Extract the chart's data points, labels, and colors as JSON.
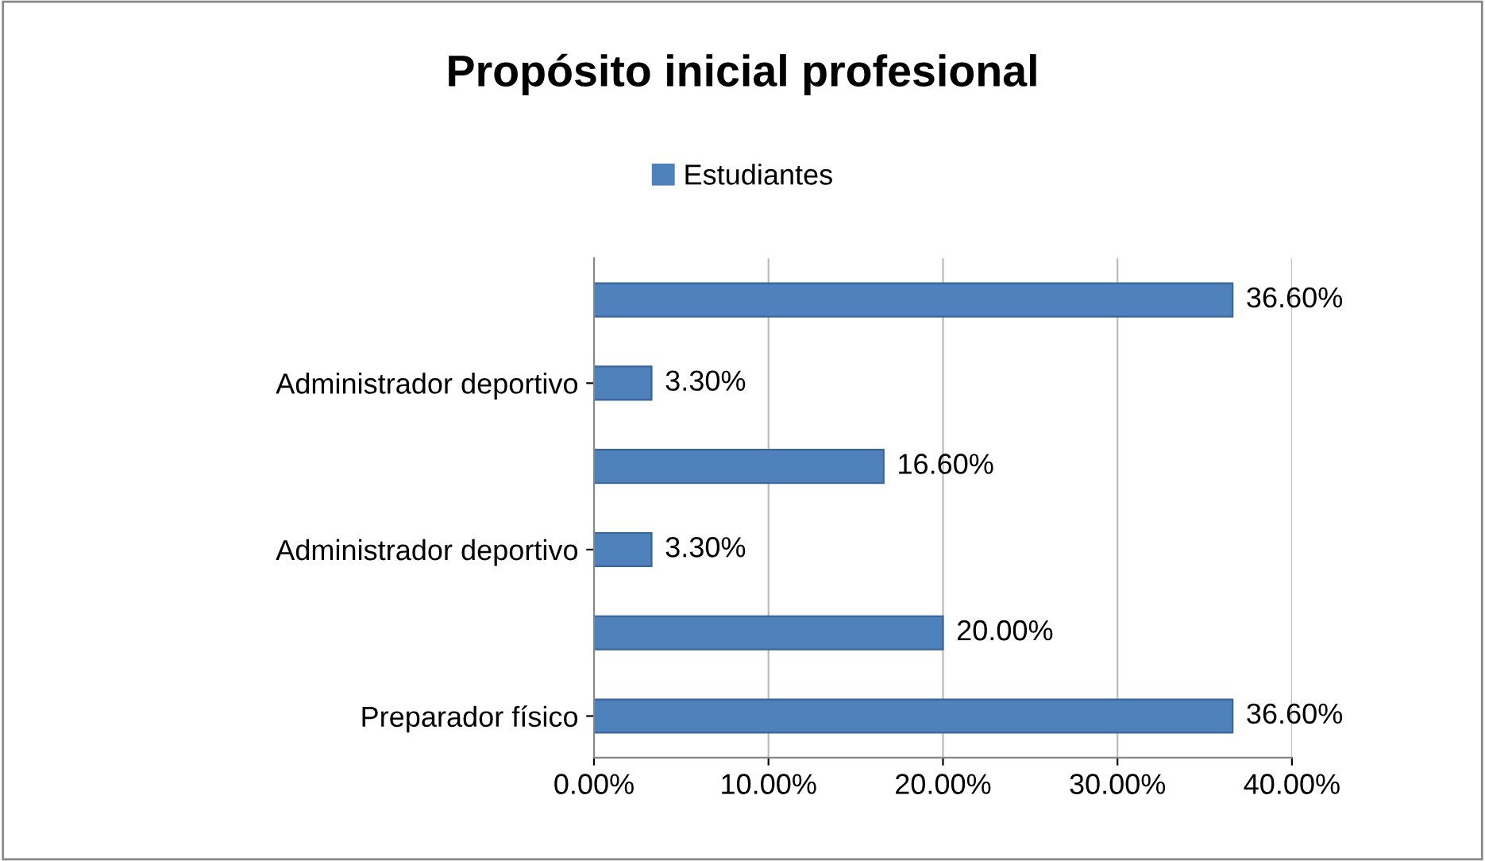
{
  "chart_data": {
    "type": "bar",
    "orientation": "horizontal",
    "title": "Propósito inicial profesional",
    "categories": [
      null,
      "Administrador deportivo",
      null,
      "Administrador deportivo",
      null,
      "Preparador físico"
    ],
    "series": [
      {
        "name": "Estudiantes",
        "color": "#4f81bd",
        "values": [
          36.6,
          3.3,
          16.6,
          3.3,
          20.0,
          36.6
        ],
        "value_labels": [
          "36.60%",
          "3.30%",
          "16.60%",
          "3.30%",
          "20.00%",
          "36.60%"
        ]
      }
    ],
    "xlim": [
      0,
      40
    ],
    "xticks": [
      {
        "value": 0,
        "label": "0.00%"
      },
      {
        "value": 10,
        "label": "10.00%"
      },
      {
        "value": 20,
        "label": "20.00%"
      },
      {
        "value": 30,
        "label": "30.00%"
      },
      {
        "value": 40,
        "label": "40.00%"
      }
    ],
    "grid": "x",
    "legend": "top"
  }
}
